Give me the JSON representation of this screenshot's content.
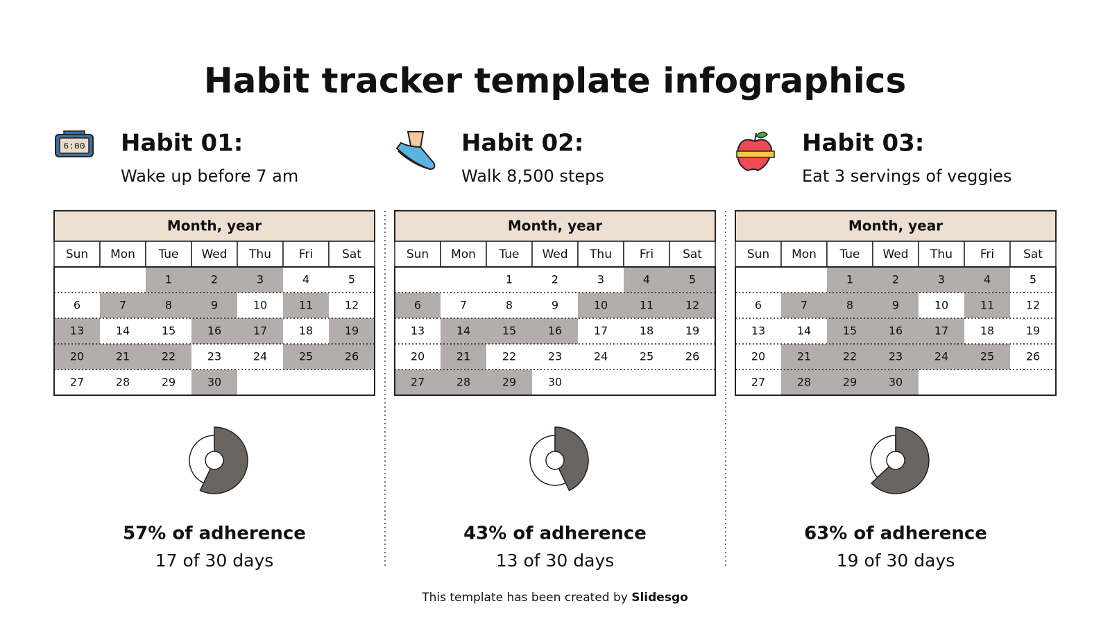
{
  "title": "Habit tracker template infographics",
  "habits": [
    {
      "label": "Habit 01:",
      "description": "Wake up before 7 am",
      "calendar": {
        "header": "Month, year",
        "weekdays": [
          "Sun",
          "Mon",
          "Tue",
          "Wed",
          "Thu",
          "Fri",
          "Sat"
        ],
        "weeks": [
          [
            null,
            null,
            1,
            2,
            3,
            4,
            5
          ],
          [
            6,
            7,
            8,
            9,
            10,
            11,
            12
          ],
          [
            13,
            14,
            15,
            16,
            17,
            18,
            19
          ],
          [
            20,
            21,
            22,
            23,
            24,
            25,
            26
          ],
          [
            27,
            28,
            29,
            30,
            null,
            null,
            null
          ]
        ],
        "done": [
          [
            false,
            false,
            true,
            true,
            true,
            false,
            false
          ],
          [
            false,
            true,
            true,
            true,
            false,
            true,
            false
          ],
          [
            true,
            false,
            false,
            true,
            true,
            false,
            true
          ],
          [
            true,
            true,
            true,
            false,
            false,
            true,
            true
          ],
          [
            false,
            false,
            false,
            true,
            false,
            false,
            false
          ]
        ]
      },
      "percent": 57,
      "adherence": "57% of adherence",
      "days": "17 of 30 days"
    },
    {
      "label": "Habit 02:",
      "description": "Walk 8,500 steps",
      "calendar": {
        "header": "Month, year",
        "weekdays": [
          "Sun",
          "Mon",
          "Tue",
          "Wed",
          "Thu",
          "Fri",
          "Sat"
        ],
        "weeks": [
          [
            null,
            null,
            1,
            2,
            3,
            4,
            5
          ],
          [
            6,
            7,
            8,
            9,
            10,
            11,
            12
          ],
          [
            13,
            14,
            15,
            16,
            17,
            18,
            19
          ],
          [
            20,
            21,
            22,
            23,
            24,
            25,
            26
          ],
          [
            27,
            28,
            29,
            30,
            null,
            null,
            null
          ]
        ],
        "done": [
          [
            false,
            false,
            false,
            false,
            false,
            true,
            true
          ],
          [
            true,
            false,
            false,
            false,
            true,
            true,
            true
          ],
          [
            false,
            true,
            true,
            true,
            false,
            false,
            false
          ],
          [
            false,
            true,
            false,
            false,
            false,
            false,
            false
          ],
          [
            true,
            true,
            true,
            false,
            false,
            false,
            false
          ]
        ]
      },
      "percent": 43,
      "adherence": "43% of adherence",
      "days": "13 of 30 days"
    },
    {
      "label": "Habit 03:",
      "description": "Eat 3 servings of veggies",
      "calendar": {
        "header": "Month, year",
        "weekdays": [
          "Sun",
          "Mon",
          "Tue",
          "Wed",
          "Thu",
          "Fri",
          "Sat"
        ],
        "weeks": [
          [
            null,
            null,
            1,
            2,
            3,
            4,
            5
          ],
          [
            6,
            7,
            8,
            9,
            10,
            11,
            12
          ],
          [
            13,
            14,
            15,
            16,
            17,
            18,
            19
          ],
          [
            20,
            21,
            22,
            23,
            24,
            25,
            26
          ],
          [
            27,
            28,
            29,
            30,
            null,
            null,
            null
          ]
        ],
        "done": [
          [
            false,
            false,
            true,
            true,
            true,
            true,
            false
          ],
          [
            false,
            true,
            true,
            true,
            false,
            true,
            false
          ],
          [
            false,
            false,
            true,
            true,
            true,
            false,
            false
          ],
          [
            false,
            true,
            true,
            true,
            true,
            true,
            false
          ],
          [
            false,
            true,
            true,
            true,
            false,
            false,
            false
          ]
        ]
      },
      "percent": 63,
      "adherence": "63% of adherence",
      "days": "19 of 30 days"
    }
  ],
  "footer": {
    "text": "This template has been created by",
    "brand": "Slidesgo"
  }
}
